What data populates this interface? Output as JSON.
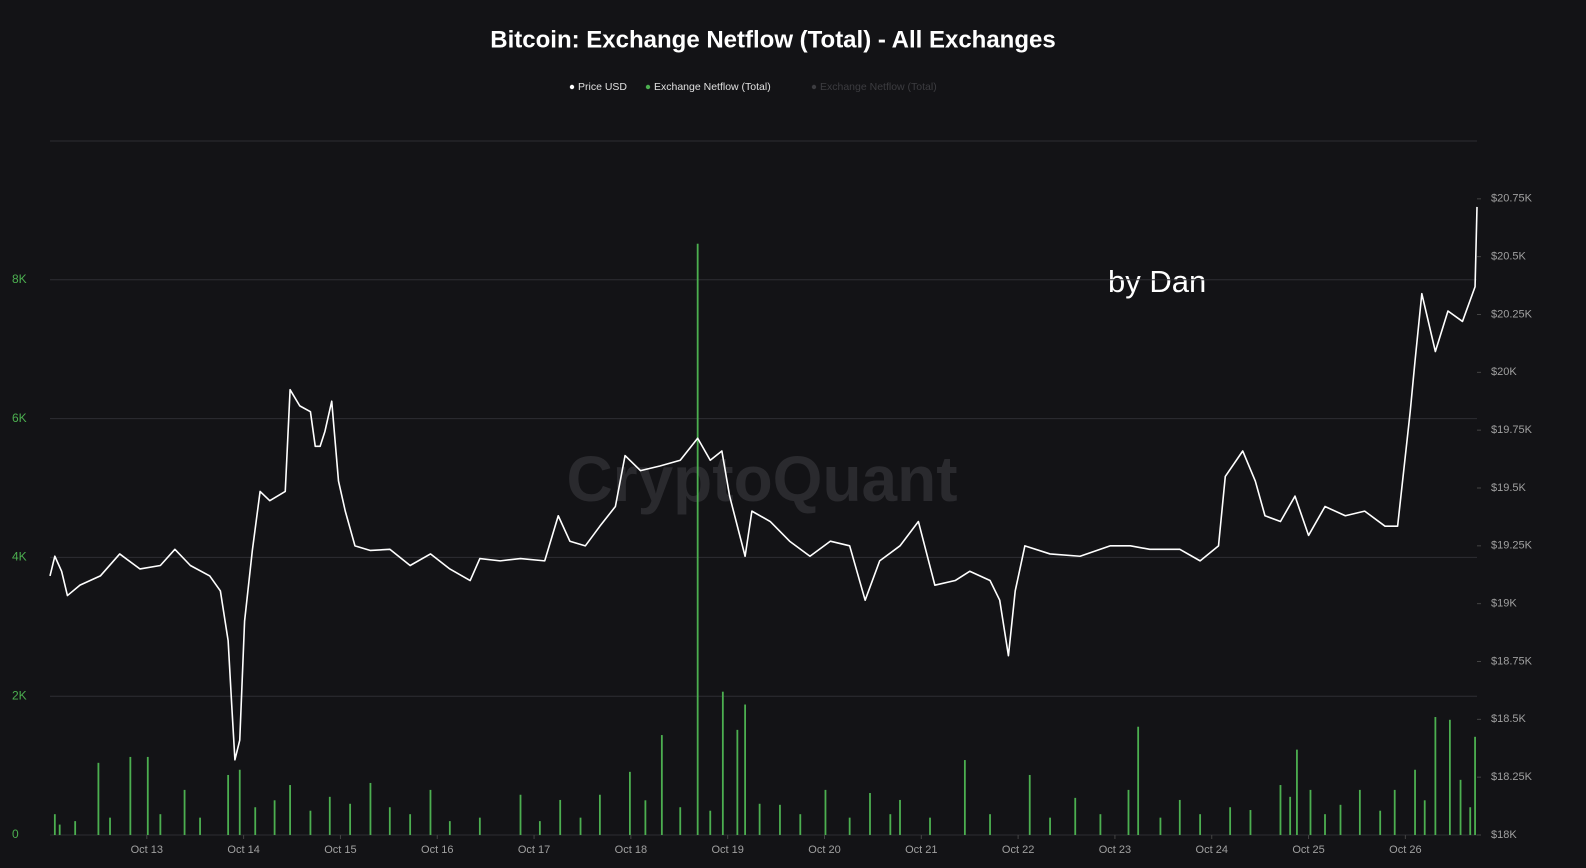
{
  "chart_data": {
    "type": "line",
    "title": "Bitcoin: Exchange Netflow (Total) - All Exchanges",
    "annotation": "by Dan",
    "watermark": "CryptoQuant",
    "grid": true,
    "legend": "top",
    "xlim": [
      12,
      26.74
    ],
    "xticks": [
      {
        "value": 13,
        "label": "Oct 13"
      },
      {
        "value": 14,
        "label": "Oct 14"
      },
      {
        "value": 15,
        "label": "Oct 15"
      },
      {
        "value": 16,
        "label": "Oct 16"
      },
      {
        "value": 17,
        "label": "Oct 17"
      },
      {
        "value": 18,
        "label": "Oct 18"
      },
      {
        "value": 19,
        "label": "Oct 19"
      },
      {
        "value": 20,
        "label": "Oct 20"
      },
      {
        "value": 21,
        "label": "Oct 21"
      },
      {
        "value": 22,
        "label": "Oct 22"
      },
      {
        "value": 23,
        "label": "Oct 23"
      },
      {
        "value": 24,
        "label": "Oct 24"
      },
      {
        "value": 25,
        "label": "Oct 25"
      },
      {
        "value": 26,
        "label": "Oct 26"
      }
    ],
    "ylim": [
      0,
      10000
    ],
    "yticks": [
      0,
      {
        "value": 2000,
        "label": "2K"
      },
      {
        "value": 4000,
        "label": "4K"
      },
      {
        "value": 6000,
        "label": "6K"
      },
      {
        "value": 8000,
        "label": "8K"
      }
    ],
    "y2lim": [
      18000,
      21000
    ],
    "y2ticks": [
      {
        "value": 18000,
        "label": "$18K"
      },
      {
        "value": 18250,
        "label": "$18.25K"
      },
      {
        "value": 18500,
        "label": "$18.5K"
      },
      {
        "value": 18750,
        "label": "$18.75K"
      },
      {
        "value": 19000,
        "label": "$19K"
      },
      {
        "value": 19250,
        "label": "$19.25K"
      },
      {
        "value": 19500,
        "label": "$19.5K"
      },
      {
        "value": 19750,
        "label": "$19.75K"
      },
      {
        "value": 20000,
        "label": "$20K"
      },
      {
        "value": 20250,
        "label": "$20.25K"
      },
      {
        "value": 20500,
        "label": "$20.5K"
      },
      {
        "value": 20750,
        "label": "$20.75K"
      }
    ],
    "series": [
      {
        "name": "Price USD",
        "color": "#ffffff",
        "type": "line",
        "axis": "y2",
        "x": [
          12.0,
          12.05,
          12.12,
          12.18,
          12.31,
          12.52,
          12.72,
          12.93,
          13.14,
          13.29,
          13.45,
          13.65,
          13.76,
          13.84,
          13.88,
          13.91,
          13.96,
          14.01,
          14.09,
          14.17,
          14.27,
          14.43,
          14.48,
          14.58,
          14.69,
          14.74,
          14.79,
          14.84,
          14.91,
          14.98,
          15.05,
          15.15,
          15.31,
          15.51,
          15.72,
          15.93,
          16.13,
          16.34,
          16.44,
          16.65,
          16.86,
          17.11,
          17.25,
          17.37,
          17.53,
          17.68,
          17.84,
          17.94,
          18.1,
          18.3,
          18.51,
          18.69,
          18.82,
          18.94,
          19.02,
          19.18,
          19.25,
          19.44,
          19.64,
          19.85,
          20.06,
          20.26,
          20.42,
          20.57,
          20.78,
          20.97,
          21.14,
          21.35,
          21.5,
          21.71,
          21.81,
          21.9,
          21.97,
          22.07,
          22.33,
          22.64,
          22.95,
          23.16,
          23.36,
          23.67,
          23.88,
          24.07,
          24.14,
          24.32,
          24.45,
          24.55,
          24.71,
          24.86,
          25.0,
          25.17,
          25.38,
          25.58,
          25.79,
          25.92,
          26.05,
          26.1,
          26.17,
          26.31,
          26.44,
          26.59,
          26.72,
          26.74
        ],
        "values": [
          19120,
          19205,
          19140,
          19035,
          19080,
          19120,
          19215,
          19150,
          19165,
          19235,
          19165,
          19120,
          19055,
          18840,
          18540,
          18325,
          18410,
          18925,
          19230,
          19485,
          19445,
          19485,
          19925,
          19855,
          19830,
          19680,
          19680,
          19745,
          19875,
          19530,
          19400,
          19250,
          19230,
          19235,
          19165,
          19215,
          19150,
          19100,
          19195,
          19185,
          19195,
          19185,
          19380,
          19270,
          19250,
          19335,
          19420,
          19640,
          19575,
          19595,
          19620,
          19715,
          19620,
          19660,
          19465,
          19205,
          19400,
          19355,
          19270,
          19205,
          19270,
          19250,
          19015,
          19185,
          19250,
          19355,
          19080,
          19100,
          19140,
          19100,
          19015,
          18775,
          19055,
          19250,
          19215,
          19205,
          19250,
          19250,
          19235,
          19235,
          19185,
          19250,
          19550,
          19660,
          19530,
          19380,
          19355,
          19465,
          19295,
          19420,
          19380,
          19400,
          19335,
          19335,
          19830,
          20050,
          20340,
          20090,
          20265,
          20220,
          20370,
          20715
        ]
      },
      {
        "name": "Exchange Netflow (Total)",
        "color": "#4caf50",
        "type": "bar",
        "x": [
          12.05,
          12.1,
          12.26,
          12.5,
          12.62,
          12.83,
          13.01,
          13.14,
          13.39,
          13.55,
          13.84,
          13.96,
          14.12,
          14.32,
          14.48,
          14.69,
          14.89,
          15.1,
          15.31,
          15.51,
          15.72,
          15.93,
          16.13,
          16.44,
          16.86,
          17.06,
          17.27,
          17.48,
          17.68,
          17.99,
          18.15,
          18.32,
          18.51,
          18.69,
          18.82,
          18.95,
          19.1,
          19.18,
          19.33,
          19.54,
          19.75,
          20.01,
          20.26,
          20.47,
          20.68,
          20.78,
          21.09,
          21.45,
          21.71,
          22.12,
          22.33,
          22.59,
          22.85,
          23.14,
          23.24,
          23.47,
          23.67,
          23.88,
          24.19,
          24.4,
          24.71,
          24.81,
          24.88,
          25.02,
          25.17,
          25.33,
          25.53,
          25.74,
          25.89,
          26.1,
          26.2,
          26.31,
          26.46,
          26.57,
          26.67,
          26.72
        ],
        "values": [
          300,
          150,
          200,
          1040,
          250,
          1125,
          1125,
          300,
          650,
          250,
          865,
          940,
          400,
          500,
          720,
          350,
          550,
          450,
          750,
          400,
          300,
          650,
          200,
          250,
          580,
          200,
          505,
          250,
          580,
          910,
          500,
          1440,
          400,
          8520,
          350,
          2065,
          1515,
          1880,
          450,
          435,
          300,
          650,
          250,
          605,
          300,
          505,
          250,
          1080,
          300,
          865,
          250,
          535,
          300,
          650,
          1560,
          250,
          505,
          300,
          400,
          360,
          720,
          550,
          1230,
          650,
          300,
          435,
          650,
          350,
          650,
          940,
          500,
          1700,
          1660,
          795,
          400,
          1415
        ]
      },
      {
        "name": "Exchange Netflow (Total)",
        "color": "#4a4a4a",
        "type": "bar",
        "hidden": true,
        "x": [],
        "values": []
      }
    ]
  }
}
